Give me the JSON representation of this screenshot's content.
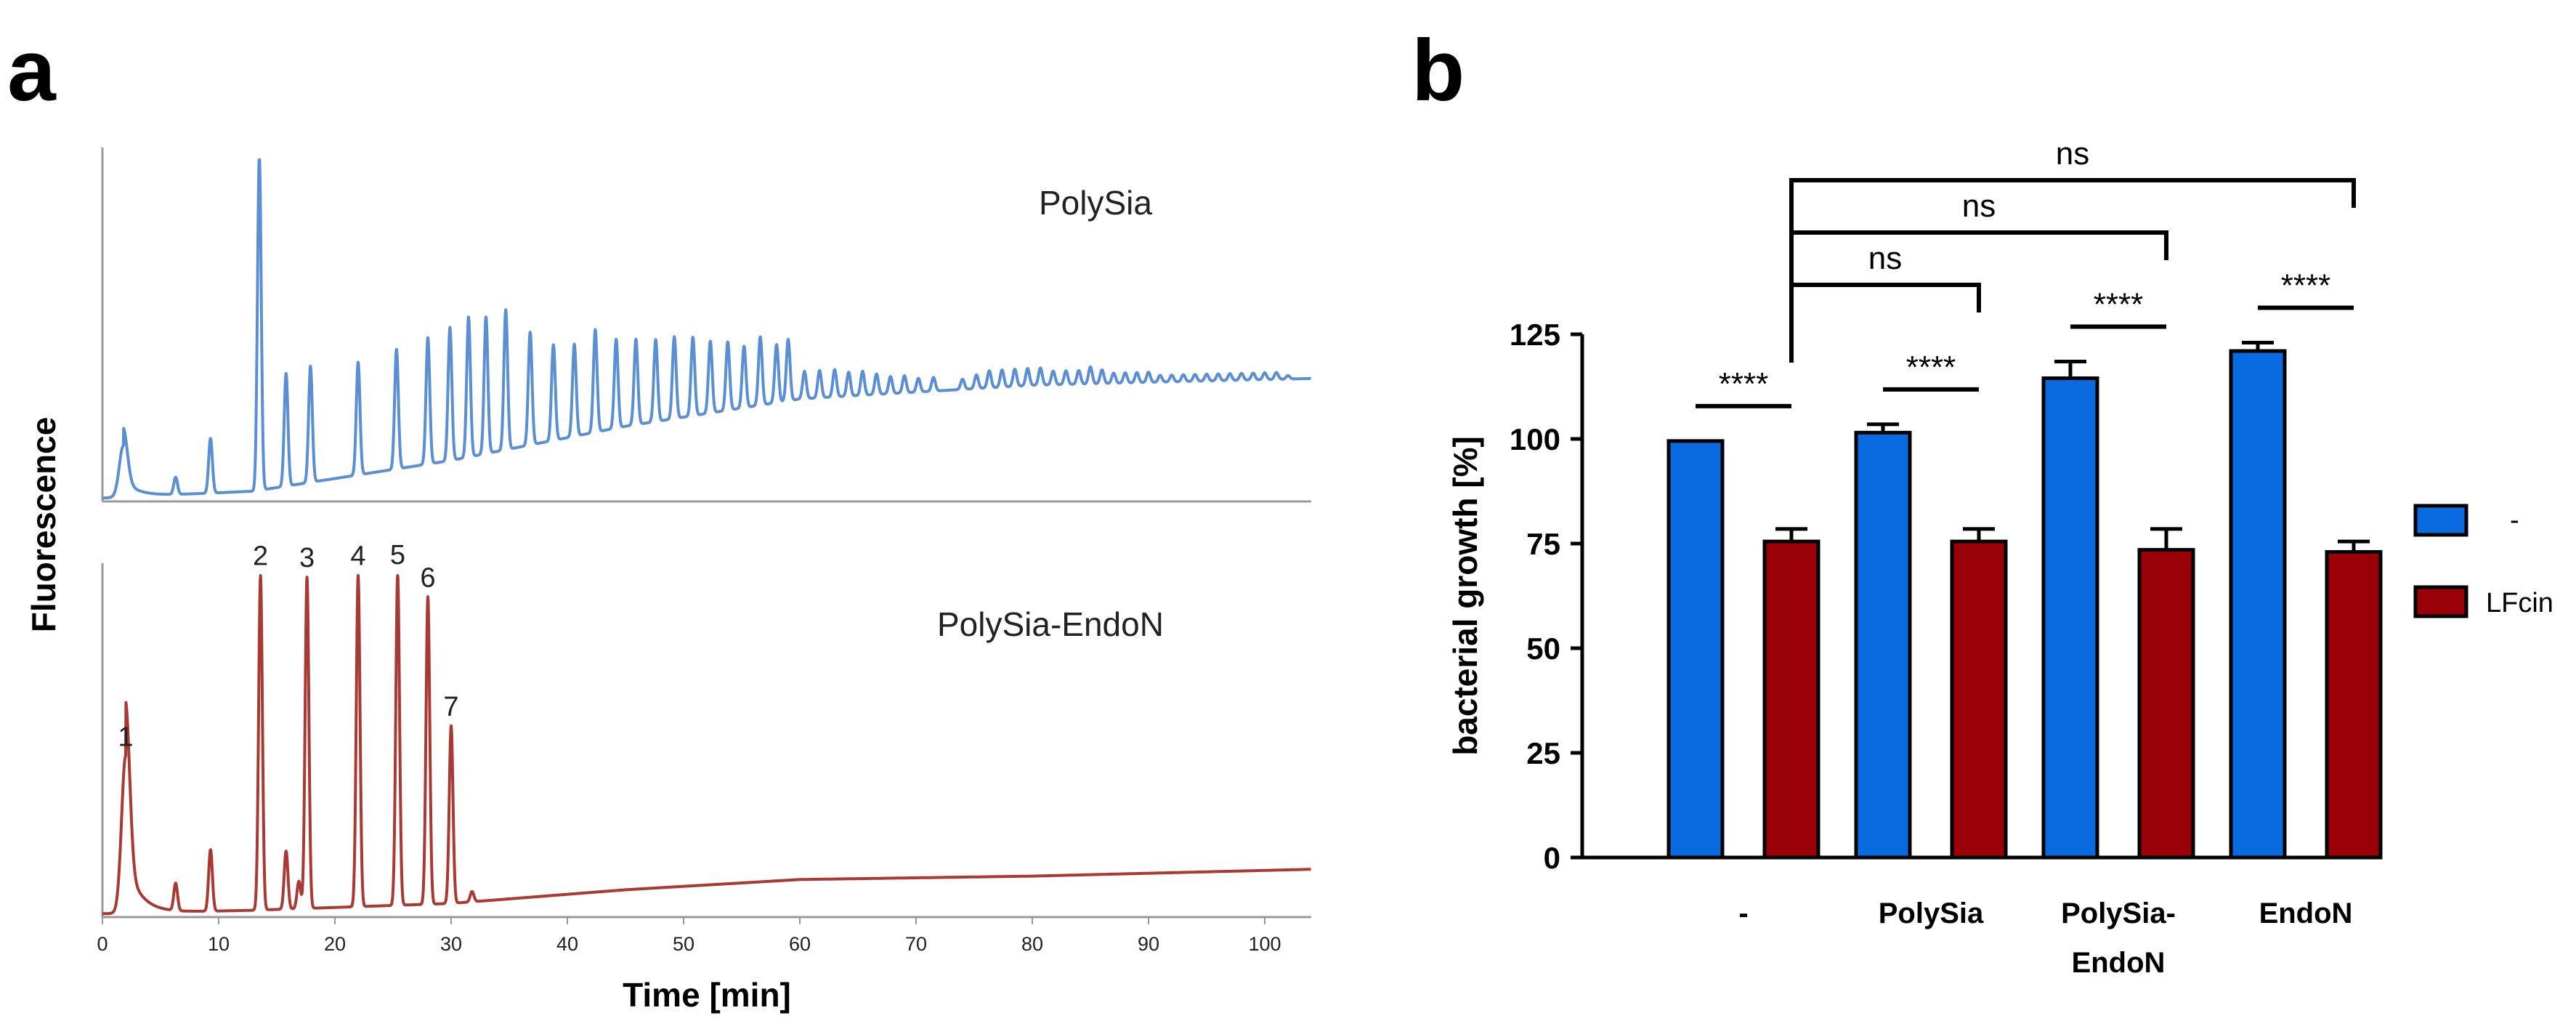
{
  "panels": {
    "a": "a",
    "b": "b"
  },
  "chart_data": [
    {
      "type": "line",
      "panel": "a",
      "xlabel": "Time [min]",
      "ylabel": "Fluorescence",
      "xlim": [
        0,
        104
      ],
      "xticks": [
        0,
        10,
        20,
        30,
        40,
        50,
        60,
        70,
        80,
        90,
        100
      ],
      "series": [
        {
          "name": "PolySia",
          "color": "#5b8fd1",
          "baseline": [
            [
              0,
              0.01
            ],
            [
              13,
              0.03
            ],
            [
              30,
              0.12
            ],
            [
              45,
              0.22
            ],
            [
              60,
              0.3
            ],
            [
              80,
              0.34
            ],
            [
              104,
              0.36
            ]
          ],
          "peaks": [
            {
              "x": 1.8,
              "h": 0.15
            },
            {
              "x": 6.3,
              "h": 0.05
            },
            {
              "x": 9.3,
              "h": 0.16
            },
            {
              "x": 13.5,
              "h": 0.98
            },
            {
              "x": 15.8,
              "h": 0.33
            },
            {
              "x": 17.9,
              "h": 0.34
            },
            {
              "x": 22.0,
              "h": 0.33
            },
            {
              "x": 25.3,
              "h": 0.35
            },
            {
              "x": 28.0,
              "h": 0.37
            },
            {
              "x": 29.9,
              "h": 0.39
            },
            {
              "x": 31.5,
              "h": 0.41
            },
            {
              "x": 33.0,
              "h": 0.4
            },
            {
              "x": 34.7,
              "h": 0.41
            },
            {
              "x": 36.8,
              "h": 0.33
            },
            {
              "x": 38.8,
              "h": 0.28
            },
            {
              "x": 40.6,
              "h": 0.27
            },
            {
              "x": 42.4,
              "h": 0.3
            },
            {
              "x": 44.2,
              "h": 0.26
            },
            {
              "x": 45.9,
              "h": 0.25
            },
            {
              "x": 47.6,
              "h": 0.24
            },
            {
              "x": 49.2,
              "h": 0.24
            },
            {
              "x": 50.8,
              "h": 0.23
            },
            {
              "x": 52.3,
              "h": 0.21
            },
            {
              "x": 53.8,
              "h": 0.2
            },
            {
              "x": 55.2,
              "h": 0.18
            },
            {
              "x": 56.6,
              "h": 0.2
            },
            {
              "x": 58.0,
              "h": 0.17
            },
            {
              "x": 59.0,
              "h": 0.18
            },
            {
              "x": 60.4,
              "h": 0.08
            },
            {
              "x": 61.7,
              "h": 0.08
            },
            {
              "x": 63.0,
              "h": 0.08
            },
            {
              "x": 64.2,
              "h": 0.07
            },
            {
              "x": 65.4,
              "h": 0.07
            },
            {
              "x": 66.6,
              "h": 0.06
            },
            {
              "x": 67.8,
              "h": 0.05
            },
            {
              "x": 69.0,
              "h": 0.05
            },
            {
              "x": 70.2,
              "h": 0.04
            },
            {
              "x": 71.5,
              "h": 0.04
            },
            {
              "x": 74.0,
              "h": 0.03
            },
            {
              "x": 75.2,
              "h": 0.04
            },
            {
              "x": 76.3,
              "h": 0.05
            },
            {
              "x": 77.4,
              "h": 0.05
            },
            {
              "x": 78.5,
              "h": 0.05
            },
            {
              "x": 79.6,
              "h": 0.05
            },
            {
              "x": 80.7,
              "h": 0.05
            },
            {
              "x": 81.8,
              "h": 0.04
            },
            {
              "x": 82.9,
              "h": 0.04
            },
            {
              "x": 84.0,
              "h": 0.04
            },
            {
              "x": 85.0,
              "h": 0.05
            },
            {
              "x": 86.0,
              "h": 0.04
            },
            {
              "x": 87.0,
              "h": 0.03
            },
            {
              "x": 88.0,
              "h": 0.03
            },
            {
              "x": 89.0,
              "h": 0.03
            },
            {
              "x": 90.0,
              "h": 0.03
            },
            {
              "x": 91.0,
              "h": 0.02
            },
            {
              "x": 92.0,
              "h": 0.02
            },
            {
              "x": 93.0,
              "h": 0.02
            },
            {
              "x": 94.0,
              "h": 0.02
            },
            {
              "x": 95.0,
              "h": 0.02
            },
            {
              "x": 96.0,
              "h": 0.02
            },
            {
              "x": 97.0,
              "h": 0.02
            },
            {
              "x": 98.0,
              "h": 0.02
            },
            {
              "x": 99.0,
              "h": 0.02
            },
            {
              "x": 100.0,
              "h": 0.02
            },
            {
              "x": 101.0,
              "h": 0.02
            },
            {
              "x": 102.0,
              "h": 0.01
            }
          ]
        },
        {
          "name": "PolySia-EndoN",
          "color": "#a83a35",
          "baseline": [
            [
              0,
              0.01
            ],
            [
              13,
              0.02
            ],
            [
              30,
              0.04
            ],
            [
              45,
              0.08
            ],
            [
              60,
              0.11
            ],
            [
              80,
              0.12
            ],
            [
              104,
              0.14
            ]
          ],
          "peaks": [
            {
              "x": 2.0,
              "h": 0.46,
              "label": "1"
            },
            {
              "x": 6.3,
              "h": 0.08
            },
            {
              "x": 9.3,
              "h": 0.18
            },
            {
              "x": 13.6,
              "h": 0.98,
              "label": "2"
            },
            {
              "x": 15.8,
              "h": 0.17
            },
            {
              "x": 16.9,
              "h": 0.08
            },
            {
              "x": 17.6,
              "h": 0.97,
              "label": "3"
            },
            {
              "x": 22.0,
              "h": 0.97,
              "label": "4"
            },
            {
              "x": 25.4,
              "h": 0.97,
              "label": "5"
            },
            {
              "x": 28.0,
              "h": 0.9,
              "label": "6"
            },
            {
              "x": 30.0,
              "h": 0.52,
              "label": "7"
            },
            {
              "x": 31.8,
              "h": 0.03
            }
          ]
        }
      ]
    },
    {
      "type": "bar",
      "panel": "b",
      "ylabel": "bacterial growth [%]",
      "ylim": [
        0,
        125
      ],
      "yticks": [
        0,
        25,
        50,
        75,
        100,
        125
      ],
      "categories": [
        "-",
        "PolySia",
        "PolySia-\nEndoN",
        "EndoN"
      ],
      "series": [
        {
          "name": "-",
          "color": "#0a6be0",
          "values": [
            99.5,
            101.5,
            114.5,
            121
          ],
          "errors": [
            0,
            2,
            4,
            2
          ]
        },
        {
          "name": "LFcin",
          "color": "#9a0007",
          "values": [
            75.5,
            75.5,
            73.5,
            73
          ],
          "errors": [
            3,
            3,
            5,
            2.5
          ]
        }
      ],
      "significance": [
        {
          "label": "****",
          "from": [
            0,
            0
          ],
          "to": [
            0,
            1
          ]
        },
        {
          "label": "****",
          "from": [
            1,
            0
          ],
          "to": [
            1,
            1
          ]
        },
        {
          "label": "****",
          "from": [
            2,
            0
          ],
          "to": [
            2,
            1
          ]
        },
        {
          "label": "****",
          "from": [
            3,
            0
          ],
          "to": [
            3,
            1
          ]
        },
        {
          "label": "ns",
          "from": [
            0,
            1
          ],
          "to": [
            1,
            1
          ]
        },
        {
          "label": "ns",
          "from": [
            0,
            1
          ],
          "to": [
            2,
            1
          ]
        },
        {
          "label": "ns",
          "from": [
            0,
            1
          ],
          "to": [
            3,
            1
          ]
        }
      ],
      "legend": "right"
    }
  ]
}
